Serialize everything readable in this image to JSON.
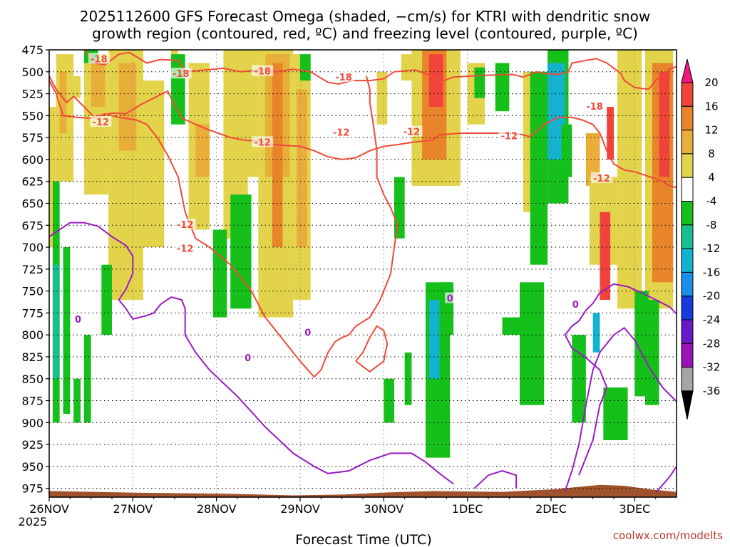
{
  "chart_data": {
    "type": "heatmap",
    "title_line1": "2025112600 GFS Forecast Omega (shaded, −cm/s) for KTRI with dendritic snow",
    "title_line2": "growth region (contoured, red, ºC) and freezing level (contoured, purple, ºC)",
    "xlabel": "Forecast Time (UTC)",
    "credit": "coolwx.com/modelts",
    "year_label": "2025",
    "x_ticks": [
      "26NOV",
      "27NOV",
      "28NOV",
      "29NOV",
      "30NOV",
      "1DEC",
      "2DEC",
      "3DEC"
    ],
    "x_range_hours": [
      0,
      180
    ],
    "y_ticks": [
      "475",
      "500",
      "525",
      "550",
      "575",
      "600",
      "625",
      "650",
      "675",
      "700",
      "725",
      "750",
      "775",
      "800",
      "825",
      "850",
      "875",
      "900",
      "925",
      "950",
      "975"
    ],
    "y_range_hpa": [
      475,
      985
    ],
    "colorbar": {
      "labels": [
        "20",
        "16",
        "12",
        "8",
        "4",
        "-4",
        "-8",
        "-12",
        "-16",
        "-20",
        "-24",
        "-28",
        "-32",
        "-36"
      ],
      "colors": [
        "#f5167a",
        "#f0433a",
        "#e8852a",
        "#e9ad3a",
        "#e3d34b",
        "#ffffff",
        "#16c01a",
        "#17bf8f",
        "#13b3cf",
        "#1a8fe8",
        "#1939d9",
        "#6a19c9",
        "#9a12b8",
        "#a6a6a6"
      ]
    },
    "surface_color": "#a0522d",
    "dgz_color": "#f04a3a",
    "freezing_color": "#9b1bc4",
    "contour_labels": [
      {
        "text": "-18",
        "time_h": 14.3,
        "p": 485
      },
      {
        "text": "-18",
        "time_h": 37.8,
        "p": 502
      },
      {
        "text": "-18",
        "time_h": 61.2,
        "p": 499
      },
      {
        "text": "-18",
        "time_h": 84.5,
        "p": 506
      },
      {
        "text": "-18",
        "time_h": 156.5,
        "p": 539
      },
      {
        "text": "-12",
        "time_h": 14.8,
        "p": 557
      },
      {
        "text": "-12",
        "time_h": 39.0,
        "p": 674
      },
      {
        "text": "-12",
        "time_h": 39.0,
        "p": 701
      },
      {
        "text": "-12",
        "time_h": 61.2,
        "p": 580
      },
      {
        "text": "-12",
        "time_h": 83.8,
        "p": 569
      },
      {
        "text": "-12",
        "time_h": 104.0,
        "p": 568
      },
      {
        "text": "-12",
        "time_h": 132.0,
        "p": 573
      },
      {
        "text": "-12",
        "time_h": 158.5,
        "p": 621
      },
      {
        "text": "0",
        "time_h": 8.3,
        "p": 782
      },
      {
        "text": "0",
        "time_h": 57.0,
        "p": 826
      },
      {
        "text": "0",
        "time_h": 74.2,
        "p": 797
      },
      {
        "text": "0",
        "time_h": 115.0,
        "p": 758
      },
      {
        "text": "0",
        "time_h": 151.0,
        "p": 765
      }
    ],
    "omega_cells": [
      {
        "t0": 0,
        "t1": 2,
        "p0": 540,
        "p1": 700,
        "v": 5
      },
      {
        "t0": 2,
        "t1": 7,
        "p0": 480,
        "p1": 625,
        "v": 6
      },
      {
        "t0": 3,
        "t1": 5,
        "p0": 500,
        "p1": 570,
        "v": 9
      },
      {
        "t0": 7,
        "t1": 9,
        "p0": 505,
        "p1": 530,
        "v": 6
      },
      {
        "t0": 10,
        "t1": 17,
        "p0": 480,
        "p1": 640,
        "v": 6
      },
      {
        "t0": 12,
        "t1": 16,
        "p0": 490,
        "p1": 540,
        "v": 10
      },
      {
        "t0": 17,
        "t1": 27,
        "p0": 475,
        "p1": 760,
        "v": 6
      },
      {
        "t0": 20,
        "t1": 25,
        "p0": 490,
        "p1": 590,
        "v": 8
      },
      {
        "t0": 27,
        "t1": 33,
        "p0": 510,
        "p1": 700,
        "v": 6
      },
      {
        "t0": 35,
        "t1": 37,
        "p0": 475,
        "p1": 520,
        "v": 6
      },
      {
        "t0": 40,
        "t1": 46,
        "p0": 490,
        "p1": 680,
        "v": 6
      },
      {
        "t0": 42,
        "t1": 46,
        "p0": 560,
        "p1": 620,
        "v": 9
      },
      {
        "t0": 50,
        "t1": 57,
        "p0": 470,
        "p1": 690,
        "v": 6
      },
      {
        "t0": 56,
        "t1": 60,
        "p0": 475,
        "p1": 620,
        "v": 6
      },
      {
        "t0": 60,
        "t1": 70,
        "p0": 475,
        "p1": 780,
        "v": 6
      },
      {
        "t0": 62,
        "t1": 69,
        "p0": 480,
        "p1": 620,
        "v": 10
      },
      {
        "t0": 64,
        "t1": 67,
        "p0": 490,
        "p1": 700,
        "v": 13
      },
      {
        "t0": 70,
        "t1": 75,
        "p0": 480,
        "p1": 760,
        "v": 6
      },
      {
        "t0": 71,
        "t1": 74,
        "p0": 520,
        "p1": 700,
        "v": 10
      },
      {
        "t0": 94,
        "t1": 97,
        "p0": 500,
        "p1": 560,
        "v": 6
      },
      {
        "t0": 101,
        "t1": 104,
        "p0": 480,
        "p1": 510,
        "v": 6
      },
      {
        "t0": 104,
        "t1": 118,
        "p0": 475,
        "p1": 630,
        "v": 6
      },
      {
        "t0": 107,
        "t1": 114,
        "p0": 475,
        "p1": 600,
        "v": 12
      },
      {
        "t0": 109,
        "t1": 113,
        "p0": 480,
        "p1": 540,
        "v": 16
      },
      {
        "t0": 120,
        "t1": 125,
        "p0": 490,
        "p1": 560,
        "v": 6
      },
      {
        "t0": 136,
        "t1": 141,
        "p0": 500,
        "p1": 660,
        "v": 6
      },
      {
        "t0": 143,
        "t1": 146,
        "p0": 520,
        "p1": 590,
        "v": 9
      },
      {
        "t0": 154,
        "t1": 158,
        "p0": 570,
        "p1": 630,
        "v": 9
      },
      {
        "t0": 155,
        "t1": 163,
        "p0": 620,
        "p1": 720,
        "v": 6
      },
      {
        "t0": 163,
        "t1": 170,
        "p0": 475,
        "p1": 770,
        "v": 6
      },
      {
        "t0": 171,
        "t1": 179,
        "p0": 475,
        "p1": 770,
        "v": 6
      },
      {
        "t0": 173,
        "t1": 179,
        "p0": 490,
        "p1": 740,
        "v": 12
      },
      {
        "t0": 175,
        "t1": 178,
        "p0": 500,
        "p1": 620,
        "v": 18
      },
      {
        "t0": 160,
        "t1": 162,
        "p0": 540,
        "p1": 600,
        "v": 18
      },
      {
        "t0": 158,
        "t1": 161,
        "p0": 660,
        "p1": 760,
        "v": 18
      },
      {
        "t0": 1,
        "t1": 3,
        "p0": 625,
        "p1": 900,
        "v": -6
      },
      {
        "t0": 1,
        "t1": 3,
        "p0": 720,
        "p1": 850,
        "v": -10
      },
      {
        "t0": 4,
        "t1": 6,
        "p0": 700,
        "p1": 890,
        "v": -6
      },
      {
        "t0": 7,
        "t1": 9,
        "p0": 850,
        "p1": 900,
        "v": -6
      },
      {
        "t0": 10,
        "t1": 12,
        "p0": 800,
        "p1": 900,
        "v": -6
      },
      {
        "t0": 15,
        "t1": 18,
        "p0": 720,
        "p1": 800,
        "v": -6
      },
      {
        "t0": 10,
        "t1": 14,
        "p0": 475,
        "p1": 490,
        "v": -6
      },
      {
        "t0": 35,
        "t1": 39,
        "p0": 480,
        "p1": 560,
        "v": -6
      },
      {
        "t0": 47,
        "t1": 51,
        "p0": 680,
        "p1": 780,
        "v": -6
      },
      {
        "t0": 52,
        "t1": 58,
        "p0": 640,
        "p1": 770,
        "v": -6
      },
      {
        "t0": 72,
        "t1": 75,
        "p0": 480,
        "p1": 510,
        "v": -6
      },
      {
        "t0": 99,
        "t1": 102,
        "p0": 620,
        "p1": 690,
        "v": -6
      },
      {
        "t0": 96,
        "t1": 99,
        "p0": 850,
        "p1": 900,
        "v": -6
      },
      {
        "t0": 102,
        "t1": 104,
        "p0": 820,
        "p1": 880,
        "v": -6
      },
      {
        "t0": 108,
        "t1": 115,
        "p0": 740,
        "p1": 940,
        "v": -6
      },
      {
        "t0": 109,
        "t1": 112,
        "p0": 760,
        "p1": 850,
        "v": -14
      },
      {
        "t0": 112,
        "t1": 116,
        "p0": 740,
        "p1": 800,
        "v": -6
      },
      {
        "t0": 122,
        "t1": 125,
        "p0": 495,
        "p1": 530,
        "v": -6
      },
      {
        "t0": 128,
        "t1": 132,
        "p0": 490,
        "p1": 545,
        "v": -6
      },
      {
        "t0": 130,
        "t1": 136,
        "p0": 780,
        "p1": 800,
        "v": -6
      },
      {
        "t0": 135,
        "t1": 142,
        "p0": 740,
        "p1": 880,
        "v": -6
      },
      {
        "t0": 138,
        "t1": 143,
        "p0": 500,
        "p1": 720,
        "v": -6
      },
      {
        "t0": 143,
        "t1": 149,
        "p0": 475,
        "p1": 650,
        "v": -6
      },
      {
        "t0": 143,
        "t1": 148,
        "p0": 490,
        "p1": 600,
        "v": -14
      },
      {
        "t0": 147,
        "t1": 150,
        "p0": 560,
        "p1": 620,
        "v": -6
      },
      {
        "t0": 150,
        "t1": 154,
        "p0": 800,
        "p1": 900,
        "v": -6
      },
      {
        "t0": 156,
        "t1": 158,
        "p0": 775,
        "p1": 820,
        "v": -14
      },
      {
        "t0": 159,
        "t1": 166,
        "p0": 860,
        "p1": 920,
        "v": -6
      },
      {
        "t0": 168,
        "t1": 172,
        "p0": 750,
        "p1": 870,
        "v": -6
      },
      {
        "t0": 171,
        "t1": 175,
        "p0": 760,
        "p1": 880,
        "v": -6
      }
    ]
  }
}
